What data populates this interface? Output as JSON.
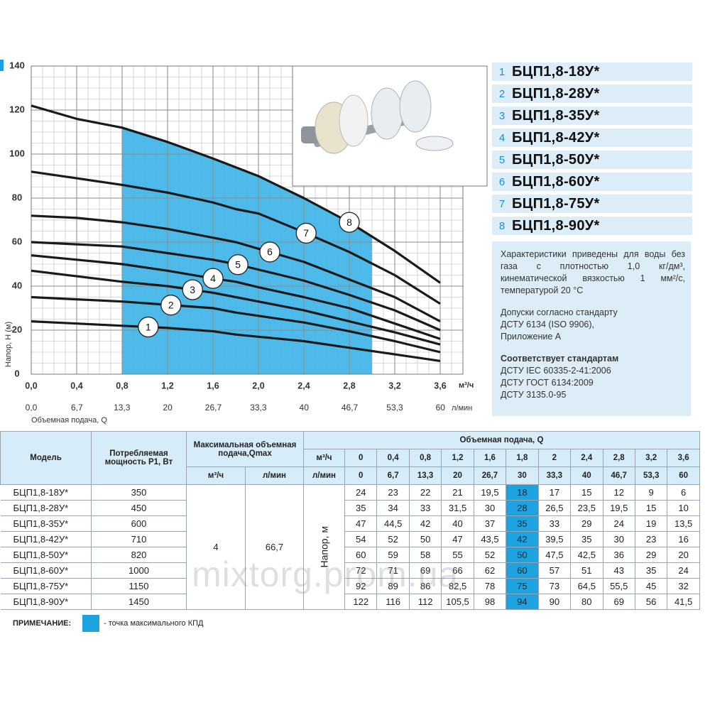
{
  "chart_data": {
    "type": "line",
    "y_label": "Напор, Н (м)",
    "x_label": "Объемная подача, Q",
    "x_unit": "м³/ч",
    "x2_unit": "л/мин",
    "x": [
      0,
      0.4,
      0.8,
      1.2,
      1.6,
      1.8,
      2,
      2.4,
      2.8,
      3.2,
      3.6
    ],
    "color": "#1a1a1a",
    "series": [
      {
        "name": "1",
        "model": "БЦП1,8-18У*",
        "values": [
          24,
          23,
          22,
          21,
          19.5,
          18,
          17,
          15,
          12,
          9,
          6
        ]
      },
      {
        "name": "2",
        "model": "БЦП1,8-28У*",
        "values": [
          35,
          34,
          33,
          31.5,
          30,
          28,
          26.5,
          23.5,
          19.5,
          15,
          10
        ]
      },
      {
        "name": "3",
        "model": "БЦП1,8-35У*",
        "values": [
          47,
          44.5,
          42,
          40,
          37,
          35,
          33,
          29,
          24,
          19,
          13.5
        ]
      },
      {
        "name": "4",
        "model": "БЦП1,8-42У*",
        "values": [
          54,
          52,
          50,
          47,
          43.5,
          42,
          39.5,
          35,
          30,
          23,
          16
        ]
      },
      {
        "name": "5",
        "model": "БЦП1,8-50У*",
        "values": [
          60,
          59,
          58,
          55,
          52,
          50,
          47.5,
          42.5,
          36,
          29,
          20
        ]
      },
      {
        "name": "6",
        "model": "БЦП1,8-60У*",
        "values": [
          72,
          71,
          69,
          66,
          62,
          60,
          57,
          51,
          43,
          35,
          24
        ]
      },
      {
        "name": "7",
        "model": "БЦП1,8-75У*",
        "values": [
          92,
          89,
          86,
          82.5,
          78,
          75,
          73,
          64.5,
          55.5,
          45,
          32
        ]
      },
      {
        "name": "8",
        "model": "БЦП1,8-90У*",
        "values": [
          122,
          116,
          112,
          105.5,
          98,
          94,
          90,
          80,
          69,
          56,
          41.5
        ]
      }
    ],
    "xlim": [
      0,
      3.8
    ],
    "xticks": [
      {
        "value": 0,
        "label": "0,0"
      },
      {
        "value": 0.4,
        "label": "0,4"
      },
      {
        "value": 0.8,
        "label": "0,8"
      },
      {
        "value": 1.2,
        "label": "1,2"
      },
      {
        "value": 1.6,
        "label": "1,6"
      },
      {
        "value": 2,
        "label": "2,0"
      },
      {
        "value": 2.4,
        "label": "2,4"
      },
      {
        "value": 2.8,
        "label": "2,8"
      },
      {
        "value": 3.2,
        "label": "3,2"
      },
      {
        "value": 3.6,
        "label": "3,6"
      }
    ],
    "x2lim": [
      0,
      63.3
    ],
    "x2ticks": [
      {
        "value": 0,
        "label": "0,0"
      },
      {
        "value": 6.7,
        "label": "6,7"
      },
      {
        "value": 13.3,
        "label": "13,3"
      },
      20,
      {
        "value": 26.7,
        "label": "26,7"
      },
      {
        "value": 33.3,
        "label": "33,3"
      },
      40,
      {
        "value": 46.7,
        "label": "46,7"
      },
      {
        "value": 53.3,
        "label": "53,3"
      },
      60
    ],
    "ylim": [
      0,
      140
    ],
    "yticks": [
      0,
      20,
      40,
      60,
      80,
      100,
      120,
      140
    ],
    "grid": true,
    "shaded_x": [
      0.8,
      3.0
    ],
    "shade_color": "#45b6e8"
  },
  "info": {
    "paragraph": "Характеристики приведены для воды без газа с плотностью 1,0 кг/дм³, кинематической вязкостью 1 мм²/с, температурой 20 °C",
    "tolerance_lines": [
      "Допуски согласно стандарту",
      "ДСТУ 6134 (ISO 9906),",
      "Приложение А"
    ],
    "standards_title": "Соответствует стандартам",
    "standards": [
      "ДСТУ IEC 60335-2-41:2006",
      "ДСТУ ГОСТ 6134:2009",
      "ДСТУ 3135.0-95"
    ]
  },
  "table": {
    "model": "Модель",
    "power": "Потребляемая мощность Р1, Вт",
    "qmax": "Максимальная объемная подача,Qmax",
    "qmax_units": [
      "м³/ч",
      "л/мин"
    ],
    "qmax_values": [
      "4",
      "66,7"
    ],
    "flow": "Объемная подача, Q",
    "flow_units": [
      "м³/ч",
      "л/мин"
    ],
    "flow_m3h": [
      "0",
      "0,4",
      "0,8",
      "1,2",
      "1,6",
      "1,8",
      "2",
      "2,4",
      "2,8",
      "3,2",
      "3,6"
    ],
    "flow_lmin": [
      "0",
      "6,7",
      "13,3",
      "20",
      "26,7",
      "30",
      "33,3",
      "40",
      "46,7",
      "53,3",
      "60"
    ],
    "head_label": "Напор, м",
    "highlight_column": 5,
    "highlight_color": "#1ea3e0",
    "rows": [
      {
        "model": "БЦП1,8-18У*",
        "power": "350",
        "values": [
          "24",
          "23",
          "22",
          "21",
          "19,5",
          "18",
          "17",
          "15",
          "12",
          "9",
          "6"
        ]
      },
      {
        "model": "БЦП1,8-28У*",
        "power": "450",
        "values": [
          "35",
          "34",
          "33",
          "31,5",
          "30",
          "28",
          "26,5",
          "23,5",
          "19,5",
          "15",
          "10"
        ]
      },
      {
        "model": "БЦП1,8-35У*",
        "power": "600",
        "values": [
          "47",
          "44,5",
          "42",
          "40",
          "37",
          "35",
          "33",
          "29",
          "24",
          "19",
          "13,5"
        ]
      },
      {
        "model": "БЦП1,8-42У*",
        "power": "710",
        "values": [
          "54",
          "52",
          "50",
          "47",
          "43,5",
          "42",
          "39,5",
          "35",
          "30",
          "23",
          "16"
        ]
      },
      {
        "model": "БЦП1,8-50У*",
        "power": "820",
        "values": [
          "60",
          "59",
          "58",
          "55",
          "52",
          "50",
          "47,5",
          "42,5",
          "36",
          "29",
          "20"
        ]
      },
      {
        "model": "БЦП1,8-60У*",
        "power": "1000",
        "values": [
          "72",
          "71",
          "69",
          "66",
          "62",
          "60",
          "57",
          "51",
          "43",
          "35",
          "24"
        ]
      },
      {
        "model": "БЦП1,8-75У*",
        "power": "1150",
        "values": [
          "92",
          "89",
          "86",
          "82,5",
          "78",
          "75",
          "73",
          "64,5",
          "55,5",
          "45",
          "32"
        ]
      },
      {
        "model": "БЦП1,8-90У*",
        "power": "1450",
        "values": [
          "122",
          "116",
          "112",
          "105,5",
          "98",
          "94",
          "90",
          "80",
          "69",
          "56",
          "41,5"
        ]
      }
    ]
  },
  "note": {
    "label": "ПРИМЕЧАНИЕ:",
    "text": "- точка максимального КПД"
  },
  "watermark": "mixtorg.prom.ua"
}
